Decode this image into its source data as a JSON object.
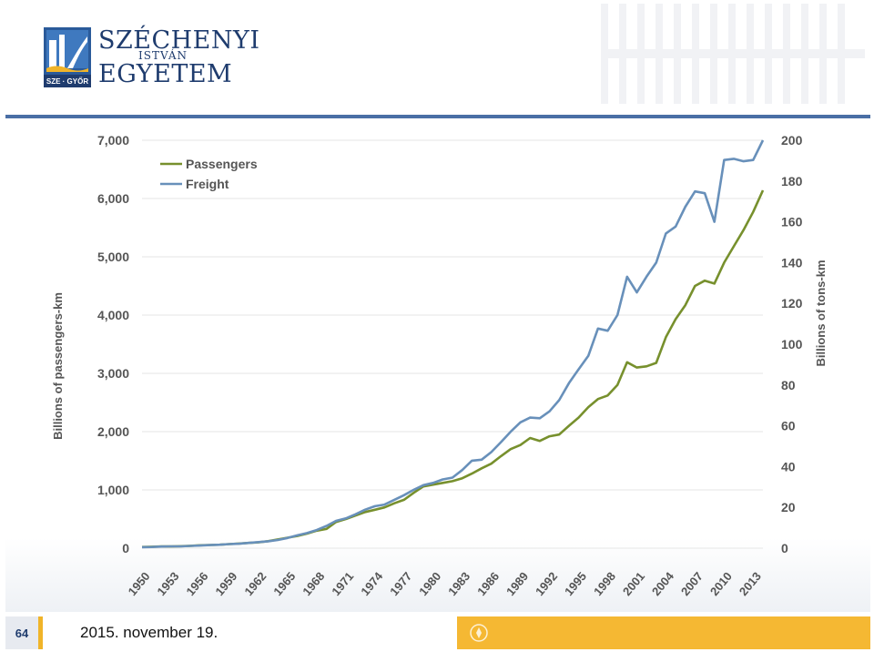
{
  "header": {
    "logo": {
      "line1": "SZÉCHENYI",
      "line2": "ISTVÁN",
      "line3": "EGYETEM",
      "emblem_text": "SZE · GYŐR"
    },
    "colors": {
      "brand": "#1f3c6e",
      "rule": "#4a6fa5",
      "accent": "#f5b833"
    }
  },
  "footer": {
    "page_number": "64",
    "date": "2015. november 19."
  },
  "chart_data": {
    "type": "line",
    "title": "",
    "x": [
      1950,
      1951,
      1952,
      1953,
      1954,
      1955,
      1956,
      1957,
      1958,
      1959,
      1960,
      1961,
      1962,
      1963,
      1964,
      1965,
      1966,
      1967,
      1968,
      1969,
      1970,
      1971,
      1972,
      1973,
      1974,
      1975,
      1976,
      1977,
      1978,
      1979,
      1980,
      1981,
      1982,
      1983,
      1984,
      1985,
      1986,
      1987,
      1988,
      1989,
      1990,
      1991,
      1992,
      1993,
      1994,
      1995,
      1996,
      1997,
      1998,
      1999,
      2000,
      2001,
      2002,
      2003,
      2004,
      2005,
      2006,
      2007,
      2008,
      2009,
      2010,
      2011,
      2012,
      2013,
      2014
    ],
    "x_tick_labels": [
      "1950",
      "1953",
      "1956",
      "1959",
      "1962",
      "1965",
      "1968",
      "1971",
      "1974",
      "1977",
      "1980",
      "1983",
      "1986",
      "1989",
      "1992",
      "1995",
      "1998",
      "2001",
      "2004",
      "2007",
      "2010",
      "2013"
    ],
    "xlabel": "",
    "ylabel_left": "Billions of passengers-km",
    "ylabel_right": "Billions of tons-km",
    "ylim_left": [
      0,
      7000
    ],
    "ylim_right": [
      0,
      200
    ],
    "yticks_left": [
      "0",
      "1,000",
      "2,000",
      "3,000",
      "4,000",
      "5,000",
      "6,000",
      "7,000"
    ],
    "yticks_right": [
      "0",
      "20",
      "40",
      "60",
      "80",
      "100",
      "120",
      "140",
      "160",
      "180",
      "200"
    ],
    "grid": "horizontal",
    "legend_position": "top-left",
    "series": [
      {
        "name": "Passengers",
        "axis": "left",
        "color": "#77902d",
        "values": [
          20,
          25,
          30,
          30,
          35,
          40,
          50,
          55,
          60,
          70,
          80,
          90,
          100,
          120,
          150,
          180,
          210,
          250,
          300,
          330,
          450,
          500,
          560,
          620,
          660,
          700,
          770,
          830,
          950,
          1060,
          1090,
          1120,
          1150,
          1200,
          1280,
          1370,
          1450,
          1580,
          1700,
          1770,
          1890,
          1840,
          1920,
          1950,
          2100,
          2240,
          2420,
          2560,
          2620,
          2800,
          3190,
          3100,
          3120,
          3180,
          3620,
          3930,
          4170,
          4500,
          4590,
          4540,
          4900,
          5180,
          5460,
          5770,
          6140
        ]
      },
      {
        "name": "Freight",
        "axis": "right",
        "color": "#6890ba",
        "values": [
          0.5,
          0.6,
          0.8,
          0.9,
          0.9,
          1.1,
          1.3,
          1.5,
          1.7,
          2.0,
          2.2,
          2.6,
          3.0,
          3.4,
          4.0,
          5.0,
          6.3,
          7.4,
          8.9,
          10.9,
          13.4,
          14.6,
          16.6,
          18.9,
          20.6,
          21.4,
          23.7,
          26.0,
          28.6,
          30.9,
          32.0,
          33.7,
          34.6,
          38.3,
          42.9,
          43.4,
          47.1,
          52.0,
          57.1,
          61.7,
          64.0,
          63.7,
          67.1,
          72.6,
          80.9,
          87.7,
          94.3,
          107.7,
          106.6,
          114.3,
          133.1,
          125.4,
          133.1,
          140.0,
          154.3,
          157.7,
          167.4,
          174.9,
          174.0,
          160.0,
          190.3,
          190.9,
          189.7,
          190.3,
          200.0
        ]
      }
    ]
  }
}
